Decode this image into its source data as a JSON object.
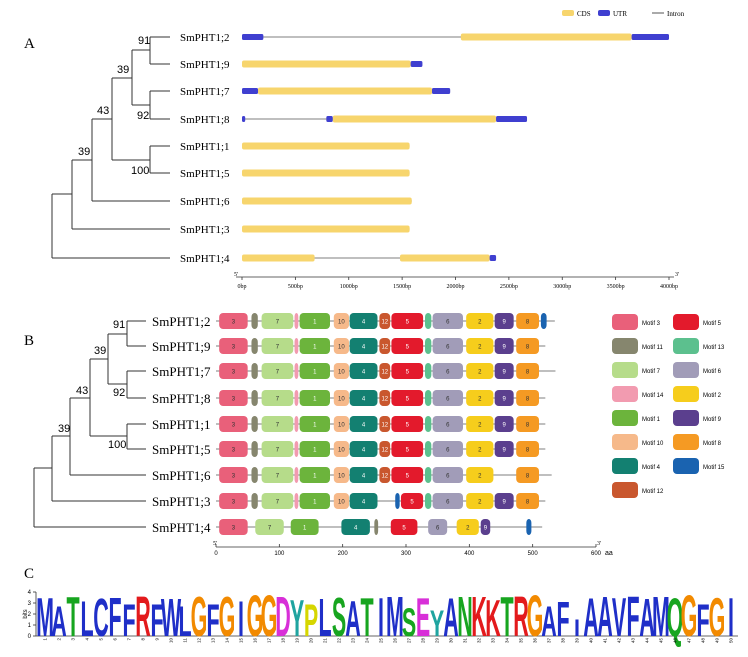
{
  "panel_labels": {
    "a": "A",
    "b": "B",
    "c": "C"
  },
  "genes": [
    "SmPHT1;2",
    "SmPHT1;9",
    "SmPHT1;7",
    "SmPHT1;8",
    "SmPHT1;1",
    "SmPHT1;5",
    "SmPHT1;6",
    "SmPHT1;3",
    "SmPHT1;4"
  ],
  "tree_support": [
    "91",
    "39",
    "92",
    "43",
    "39",
    "100"
  ],
  "structure_legend": [
    {
      "label": "CDS",
      "color": "#f7d56d"
    },
    {
      "label": "UTR",
      "color": "#3f3fd0"
    },
    {
      "label": "Intron",
      "color": "#555555"
    }
  ],
  "structure_axis": {
    "ticks": [
      "0bp",
      "500bp",
      "1000bp",
      "1500bp",
      "2000bp",
      "2500bp",
      "3000bp",
      "3500bp",
      "4000bp"
    ],
    "start_mark": "5'",
    "end_mark": "3'"
  },
  "gene_structures": [
    {
      "gene": "SmPHT1;2",
      "length": 4000,
      "utr": [
        [
          0,
          200
        ],
        [
          3650,
          4000
        ]
      ],
      "cds": [
        [
          2050,
          3650
        ]
      ]
    },
    {
      "gene": "SmPHT1;9",
      "length": 1690,
      "utr": [
        [
          1580,
          1690
        ]
      ],
      "cds": [
        [
          0,
          1580
        ]
      ]
    },
    {
      "gene": "SmPHT1;7",
      "length": 1950,
      "utr": [
        [
          0,
          150
        ],
        [
          1780,
          1950
        ]
      ],
      "cds": [
        [
          150,
          1780
        ]
      ]
    },
    {
      "gene": "SmPHT1;8",
      "length": 2670,
      "utr": [
        [
          0,
          30
        ],
        [
          790,
          850
        ],
        [
          2380,
          2670
        ]
      ],
      "cds": [
        [
          850,
          2380
        ]
      ]
    },
    {
      "gene": "SmPHT1;1",
      "length": 1570,
      "utr": [],
      "cds": [
        [
          0,
          1570
        ]
      ]
    },
    {
      "gene": "SmPHT1;5",
      "length": 1570,
      "utr": [],
      "cds": [
        [
          0,
          1570
        ]
      ]
    },
    {
      "gene": "SmPHT1;6",
      "length": 1590,
      "utr": [],
      "cds": [
        [
          0,
          1590
        ]
      ]
    },
    {
      "gene": "SmPHT1;3",
      "length": 1570,
      "utr": [],
      "cds": [
        [
          0,
          1570
        ]
      ]
    },
    {
      "gene": "SmPHT1;4",
      "length": 2380,
      "utr": [
        [
          2320,
          2380
        ]
      ],
      "cds": [
        [
          0,
          680
        ],
        [
          1480,
          2320
        ]
      ]
    }
  ],
  "motif_legend": [
    {
      "label": "Motif 3",
      "color": "#e9607a"
    },
    {
      "label": "Motif 5",
      "color": "#e31a2c"
    },
    {
      "label": "Motif 11",
      "color": "#86866e"
    },
    {
      "label": "Motif 13",
      "color": "#5cc08e"
    },
    {
      "label": "Motif 7",
      "color": "#b6dc8a"
    },
    {
      "label": "Motif 6",
      "color": "#a19cb8"
    },
    {
      "label": "Motif 14",
      "color": "#f29bb0"
    },
    {
      "label": "Motif 2",
      "color": "#f6cd1c"
    },
    {
      "label": "Motif 1",
      "color": "#6cb43c"
    },
    {
      "label": "Motif 9",
      "color": "#5b3f8e"
    },
    {
      "label": "Motif 10",
      "color": "#f6b98a"
    },
    {
      "label": "Motif 8",
      "color": "#f59a23"
    },
    {
      "label": "Motif 4",
      "color": "#138071"
    },
    {
      "label": "Motif 15",
      "color": "#1a63b0"
    },
    {
      "label": "Motif 12",
      "color": "#c9572e"
    }
  ],
  "motif_axis": {
    "ticks": [
      "0",
      "100",
      "200",
      "300",
      "400",
      "500",
      "600"
    ],
    "unit": "aa",
    "start_mark": "5'",
    "end_mark": "3'"
  },
  "motif_rows": [
    {
      "gene": "SmPHT1;2",
      "length": 535,
      "motifs": [
        [
          3,
          5,
          50
        ],
        [
          11,
          56,
          66
        ],
        [
          7,
          72,
          122
        ],
        [
          14,
          124,
          130
        ],
        [
          1,
          132,
          180
        ],
        [
          10,
          186,
          210
        ],
        [
          4,
          211,
          255
        ],
        [
          12,
          258,
          275
        ],
        [
          5,
          277,
          327
        ],
        [
          13,
          330,
          340
        ],
        [
          6,
          342,
          390
        ],
        [
          2,
          395,
          438
        ],
        [
          9,
          440,
          470
        ],
        [
          8,
          474,
          510
        ],
        [
          15,
          513,
          522
        ]
      ]
    },
    {
      "gene": "SmPHT1;9",
      "length": 520,
      "motifs": [
        [
          3,
          5,
          50
        ],
        [
          11,
          56,
          66
        ],
        [
          7,
          72,
          122
        ],
        [
          14,
          124,
          130
        ],
        [
          1,
          132,
          180
        ],
        [
          10,
          186,
          210
        ],
        [
          4,
          211,
          255
        ],
        [
          12,
          258,
          275
        ],
        [
          5,
          277,
          327
        ],
        [
          13,
          330,
          340
        ],
        [
          6,
          342,
          390
        ],
        [
          2,
          395,
          438
        ],
        [
          9,
          440,
          470
        ],
        [
          8,
          474,
          510
        ]
      ]
    },
    {
      "gene": "SmPHT1;7",
      "length": 536,
      "motifs": [
        [
          3,
          5,
          50
        ],
        [
          11,
          56,
          66
        ],
        [
          7,
          72,
          122
        ],
        [
          14,
          124,
          130
        ],
        [
          1,
          132,
          180
        ],
        [
          10,
          186,
          210
        ],
        [
          4,
          211,
          255
        ],
        [
          12,
          258,
          275
        ],
        [
          5,
          277,
          327
        ],
        [
          13,
          330,
          340
        ],
        [
          6,
          342,
          390
        ],
        [
          2,
          395,
          438
        ],
        [
          9,
          440,
          470
        ],
        [
          8,
          474,
          510
        ]
      ]
    },
    {
      "gene": "SmPHT1;8",
      "length": 520,
      "motifs": [
        [
          3,
          5,
          50
        ],
        [
          11,
          56,
          66
        ],
        [
          7,
          72,
          122
        ],
        [
          14,
          124,
          130
        ],
        [
          1,
          132,
          180
        ],
        [
          10,
          186,
          210
        ],
        [
          4,
          211,
          255
        ],
        [
          12,
          258,
          275
        ],
        [
          5,
          277,
          327
        ],
        [
          13,
          330,
          340
        ],
        [
          6,
          342,
          390
        ],
        [
          2,
          395,
          438
        ],
        [
          9,
          440,
          470
        ],
        [
          8,
          474,
          510
        ]
      ]
    },
    {
      "gene": "SmPHT1;1",
      "length": 520,
      "motifs": [
        [
          3,
          5,
          50
        ],
        [
          11,
          56,
          66
        ],
        [
          7,
          72,
          122
        ],
        [
          14,
          124,
          130
        ],
        [
          1,
          132,
          180
        ],
        [
          10,
          186,
          210
        ],
        [
          4,
          211,
          255
        ],
        [
          12,
          258,
          275
        ],
        [
          5,
          277,
          327
        ],
        [
          13,
          330,
          340
        ],
        [
          6,
          342,
          390
        ],
        [
          2,
          395,
          438
        ],
        [
          9,
          440,
          470
        ],
        [
          8,
          474,
          510
        ]
      ]
    },
    {
      "gene": "SmPHT1;5",
      "length": 520,
      "motifs": [
        [
          3,
          5,
          50
        ],
        [
          11,
          56,
          66
        ],
        [
          7,
          72,
          122
        ],
        [
          14,
          124,
          130
        ],
        [
          1,
          132,
          180
        ],
        [
          10,
          186,
          210
        ],
        [
          4,
          211,
          255
        ],
        [
          12,
          258,
          275
        ],
        [
          5,
          277,
          327
        ],
        [
          13,
          330,
          340
        ],
        [
          6,
          342,
          390
        ],
        [
          2,
          395,
          438
        ],
        [
          9,
          440,
          470
        ],
        [
          8,
          474,
          510
        ]
      ]
    },
    {
      "gene": "SmPHT1;6",
      "length": 530,
      "motifs": [
        [
          3,
          5,
          50
        ],
        [
          11,
          56,
          66
        ],
        [
          7,
          72,
          122
        ],
        [
          14,
          124,
          130
        ],
        [
          1,
          132,
          180
        ],
        [
          10,
          186,
          210
        ],
        [
          4,
          211,
          255
        ],
        [
          12,
          258,
          275
        ],
        [
          5,
          277,
          327
        ],
        [
          13,
          330,
          340
        ],
        [
          6,
          342,
          390
        ],
        [
          2,
          395,
          438
        ],
        [
          8,
          474,
          510
        ]
      ]
    },
    {
      "gene": "SmPHT1;3",
      "length": 520,
      "motifs": [
        [
          3,
          5,
          50
        ],
        [
          11,
          56,
          66
        ],
        [
          7,
          72,
          122
        ],
        [
          14,
          124,
          130
        ],
        [
          1,
          132,
          180
        ],
        [
          10,
          186,
          210
        ],
        [
          4,
          211,
          255
        ],
        [
          15,
          283,
          290
        ],
        [
          5,
          292,
          327
        ],
        [
          13,
          330,
          340
        ],
        [
          6,
          342,
          390
        ],
        [
          2,
          395,
          438
        ],
        [
          9,
          440,
          470
        ],
        [
          8,
          474,
          510
        ]
      ]
    },
    {
      "gene": "SmPHT1;4",
      "length": 515,
      "motifs": [
        [
          3,
          5,
          50
        ],
        [
          7,
          62,
          107
        ],
        [
          1,
          118,
          162
        ],
        [
          4,
          198,
          243
        ],
        [
          11,
          250,
          256
        ],
        [
          5,
          276,
          318
        ],
        [
          6,
          335,
          365
        ],
        [
          2,
          380,
          415
        ],
        [
          9,
          418,
          433
        ],
        [
          15,
          490,
          498
        ]
      ]
    }
  ],
  "logo": {
    "ylabel": "bits",
    "yticks": [
      "0",
      "1",
      "2",
      "3",
      "4"
    ],
    "sequence": [
      "M",
      "A",
      "T",
      "L",
      "C",
      "F",
      "F",
      "R",
      "F",
      "W",
      "L",
      "G",
      "F",
      "G",
      "I",
      "G",
      "G",
      "D",
      "Y",
      "P",
      "L",
      "S",
      "A",
      "T",
      "I",
      "M",
      "S",
      "E",
      "Y",
      "A",
      "N",
      "K",
      "K",
      "T",
      "R",
      "G",
      "A",
      "F",
      "I",
      "A",
      "A",
      "V",
      "F",
      "A",
      "M",
      "Q",
      "G",
      "F",
      "G",
      "I"
    ],
    "heights": [
      3.6,
      2.8,
      3.7,
      3.3,
      3.5,
      3.6,
      3.0,
      3.7,
      3.0,
      3.5,
      2.8,
      3.7,
      3.0,
      3.7,
      3.3,
      3.8,
      3.8,
      3.7,
      3.4,
      3.0,
      3.5,
      3.6,
      3.3,
      3.6,
      3.6,
      3.7,
      2.6,
      3.6,
      2.4,
      3.6,
      3.7,
      3.7,
      3.4,
      3.7,
      3.7,
      3.8,
      2.8,
      3.2,
      1.6,
      3.6,
      3.7,
      3.6,
      3.7,
      3.5,
      3.7,
      3.6,
      3.8,
      3.0,
      3.6,
      3.6
    ],
    "positions": [
      "1",
      "2",
      "3",
      "4",
      "5",
      "6",
      "7",
      "8",
      "9",
      "10",
      "11",
      "12",
      "13",
      "14",
      "15",
      "16",
      "17",
      "18",
      "19",
      "20",
      "21",
      "22",
      "23",
      "24",
      "25",
      "26",
      "27",
      "28",
      "29",
      "30",
      "31",
      "32",
      "33",
      "34",
      "35",
      "36",
      "37",
      "38",
      "39",
      "40",
      "41",
      "42",
      "43",
      "44",
      "45",
      "46",
      "47",
      "48",
      "49",
      "50"
    ]
  }
}
